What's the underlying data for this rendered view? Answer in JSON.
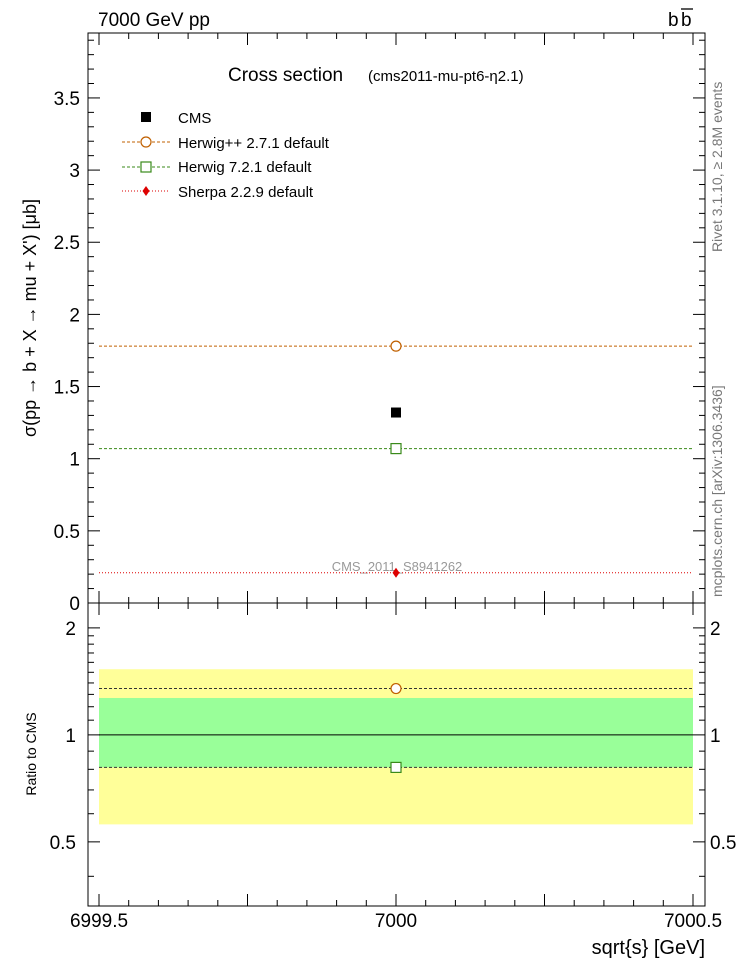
{
  "header": {
    "energy_label": "7000 GeV pp",
    "process_label_base": "b",
    "process_label_bar": "b"
  },
  "side_labels": {
    "right_top": "Rivet 3.1.10, ≥ 2.8M events",
    "right_bottom": "mcplots.cern.ch [arXiv:1306.3436]"
  },
  "watermark": "CMS_2011_S8941262",
  "colors": {
    "cms": "#000000",
    "herwigpp": "#c06000",
    "herwig7": "#3a8a1a",
    "sherpa": "#dd0000",
    "band_outer": "#ffff99",
    "band_inner": "#99ff99",
    "watermark": "#999999",
    "side_text": "#777777"
  },
  "chart_data": {
    "type": "scatter",
    "title": "Cross section",
    "subtitle": "(cms2011-mu-pt6-η2.1)",
    "xlabel": "sqrt{s} [GeV]",
    "ylabel": "σ(pp → b + X → mu + X') [μb]",
    "xlim": [
      6999.5,
      7000.5
    ],
    "ylim": [
      0,
      3.95
    ],
    "x_ticks": [
      6999.5,
      7000,
      7000.5
    ],
    "x_tick_labels": [
      "6999.5",
      "7000",
      "7000.5"
    ],
    "y_tick_labels": [
      "0",
      "0.5",
      "1",
      "1.5",
      "2",
      "2.5",
      "3",
      "3.5"
    ],
    "y_ticks": [
      0,
      0.5,
      1,
      1.5,
      2,
      2.5,
      3,
      3.5
    ],
    "legend_position": "top-left",
    "series": [
      {
        "name": "CMS",
        "key": "cms",
        "marker": "filled-square",
        "x": 7000,
        "y": 1.32,
        "line": "none"
      },
      {
        "name": "Herwig++ 2.7.1 default",
        "key": "herwigpp",
        "marker": "open-circle",
        "x": 7000,
        "y": 1.78,
        "line": "dashed"
      },
      {
        "name": "Herwig 7.2.1 default",
        "key": "herwig7",
        "marker": "open-square",
        "x": 7000,
        "y": 1.07,
        "line": "dashed"
      },
      {
        "name": "Sherpa 2.2.9 default",
        "key": "sherpa",
        "marker": "filled-diamond",
        "x": 7000,
        "y": 0.21,
        "line": "dotted"
      }
    ],
    "ratio": {
      "ylabel": "Ratio to CMS",
      "ylim": [
        0.33,
        2.35
      ],
      "y_tick_labels": [
        "0.5",
        "1",
        "2"
      ],
      "y_ticks": [
        0.5,
        1,
        2
      ],
      "reference": 1,
      "band_outer": [
        0.56,
        1.53
      ],
      "band_inner": [
        0.81,
        1.27
      ],
      "points": [
        {
          "key": "herwigpp",
          "y": 1.35
        },
        {
          "key": "herwig7",
          "y": 0.81
        }
      ]
    }
  }
}
